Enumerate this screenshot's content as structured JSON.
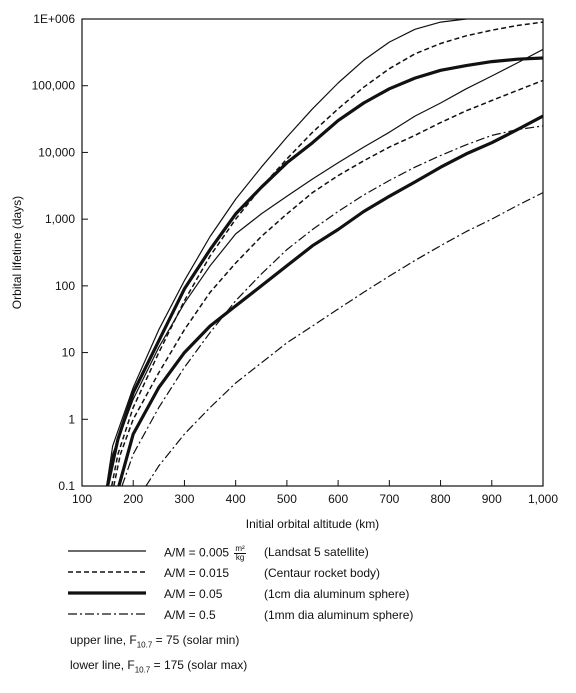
{
  "chart_data": {
    "type": "line",
    "xlabel": "Initial orbital altitude (km)",
    "ylabel": "Orbital lifetime (days)",
    "xlim": [
      100,
      1000
    ],
    "ylim": [
      0.1,
      1000000
    ],
    "y_scale": "log",
    "grid": false,
    "x_ticks": [
      {
        "value": 100,
        "label": "100"
      },
      {
        "value": 200,
        "label": "200"
      },
      {
        "value": 300,
        "label": "300"
      },
      {
        "value": 400,
        "label": "400"
      },
      {
        "value": 500,
        "label": "500"
      },
      {
        "value": 600,
        "label": "600"
      },
      {
        "value": 700,
        "label": "700"
      },
      {
        "value": 800,
        "label": "800"
      },
      {
        "value": 900,
        "label": "900"
      },
      {
        "value": 1000,
        "label": "1,000"
      }
    ],
    "y_ticks": [
      {
        "value": 0.1,
        "label": "0.1"
      },
      {
        "value": 1,
        "label": "1"
      },
      {
        "value": 10,
        "label": "10"
      },
      {
        "value": 100,
        "label": "100"
      },
      {
        "value": 1000,
        "label": "1,000"
      },
      {
        "value": 10000,
        "label": "10,000"
      },
      {
        "value": 100000,
        "label": "100,000"
      },
      {
        "value": 1000000,
        "label": "1E+006"
      }
    ],
    "series": [
      {
        "style": "solid",
        "bound": "upper",
        "x": [
          148,
          160,
          200,
          250,
          300,
          350,
          400,
          450,
          500,
          550,
          600,
          650,
          700,
          750,
          800,
          850
        ],
        "y": [
          0.1,
          0.4,
          3,
          22,
          120,
          550,
          2000,
          6000,
          17000,
          45000,
          110000,
          240000,
          450000,
          700000,
          900000,
          1000000
        ]
      },
      {
        "style": "solid",
        "bound": "lower",
        "x": [
          148,
          160,
          200,
          250,
          300,
          350,
          400,
          450,
          500,
          550,
          600,
          650,
          700,
          750,
          800,
          850,
          900,
          950,
          1000
        ],
        "y": [
          0.1,
          0.3,
          2,
          12,
          55,
          200,
          600,
          1200,
          2200,
          4000,
          7000,
          12000,
          20000,
          35000,
          55000,
          90000,
          140000,
          220000,
          350000
        ]
      },
      {
        "style": "dashed",
        "bound": "upper",
        "x": [
          158,
          170,
          200,
          250,
          300,
          350,
          400,
          450,
          500,
          550,
          600,
          650,
          700,
          750,
          800,
          850,
          900,
          950,
          1000
        ],
        "y": [
          0.1,
          0.3,
          1.5,
          10,
          60,
          280,
          1000,
          3000,
          8000,
          20000,
          45000,
          95000,
          180000,
          300000,
          430000,
          560000,
          680000,
          800000,
          900000
        ]
      },
      {
        "style": "dashed",
        "bound": "lower",
        "x": [
          162,
          175,
          200,
          250,
          300,
          350,
          400,
          450,
          500,
          550,
          600,
          650,
          700,
          750,
          800,
          850,
          900,
          950,
          1000
        ],
        "y": [
          0.1,
          0.3,
          1,
          5,
          22,
          80,
          220,
          550,
          1200,
          2500,
          4500,
          7500,
          12000,
          18000,
          28000,
          42000,
          60000,
          85000,
          120000
        ]
      },
      {
        "style": "thick",
        "bound": "upper",
        "x": [
          150,
          170,
          200,
          250,
          300,
          350,
          400,
          450,
          500,
          550,
          600,
          650,
          700,
          750,
          800,
          850,
          900,
          950,
          1000
        ],
        "y": [
          0.1,
          0.5,
          2.5,
          15,
          90,
          350,
          1200,
          3000,
          7000,
          14000,
          30000,
          55000,
          90000,
          130000,
          170000,
          200000,
          230000,
          250000,
          260000
        ]
      },
      {
        "style": "thick",
        "bound": "lower",
        "x": [
          172,
          200,
          250,
          300,
          350,
          400,
          450,
          500,
          550,
          600,
          650,
          700,
          750,
          800,
          850,
          900,
          950,
          1000
        ],
        "y": [
          0.1,
          0.6,
          3,
          10,
          25,
          50,
          100,
          200,
          400,
          700,
          1300,
          2200,
          3600,
          6000,
          9500,
          14000,
          22000,
          35000
        ]
      },
      {
        "style": "dashdot",
        "bound": "upper",
        "x": [
          178,
          200,
          250,
          300,
          350,
          400,
          450,
          500,
          550,
          600,
          650,
          700,
          750,
          800,
          850,
          900,
          950,
          1000
        ],
        "y": [
          0.1,
          0.3,
          1.5,
          6,
          20,
          60,
          150,
          350,
          700,
          1300,
          2300,
          3800,
          6000,
          9000,
          13000,
          18000,
          22000,
          25000
        ]
      },
      {
        "style": "dashdot",
        "bound": "lower",
        "x": [
          225,
          250,
          300,
          350,
          400,
          450,
          500,
          550,
          600,
          650,
          700,
          750,
          800,
          850,
          900,
          950,
          1000
        ],
        "y": [
          0.1,
          0.2,
          0.6,
          1.5,
          3.5,
          7,
          14,
          25,
          45,
          80,
          140,
          240,
          400,
          650,
          1000,
          1600,
          2500
        ]
      }
    ],
    "legend": [
      {
        "style": "solid",
        "name": "A/M = 0.005",
        "unit_num": "m²",
        "unit_den": "kg",
        "desc": "(Landsat 5 satellite)"
      },
      {
        "style": "dashed",
        "name": "A/M = 0.015",
        "desc": "(Centaur rocket body)"
      },
      {
        "style": "thick",
        "name": "A/M = 0.05",
        "desc": "(1cm dia aluminum sphere)"
      },
      {
        "style": "dashdot",
        "name": "A/M = 0.5",
        "desc": "(1mm dia aluminum sphere)"
      }
    ],
    "notes": {
      "upper_prefix": "upper line, F",
      "upper_sub": "10.7",
      "upper_suffix": " = 75 (solar min)",
      "lower_prefix": "lower line, F",
      "lower_sub": "10.7",
      "lower_suffix": " = 175 (solar max)"
    }
  }
}
